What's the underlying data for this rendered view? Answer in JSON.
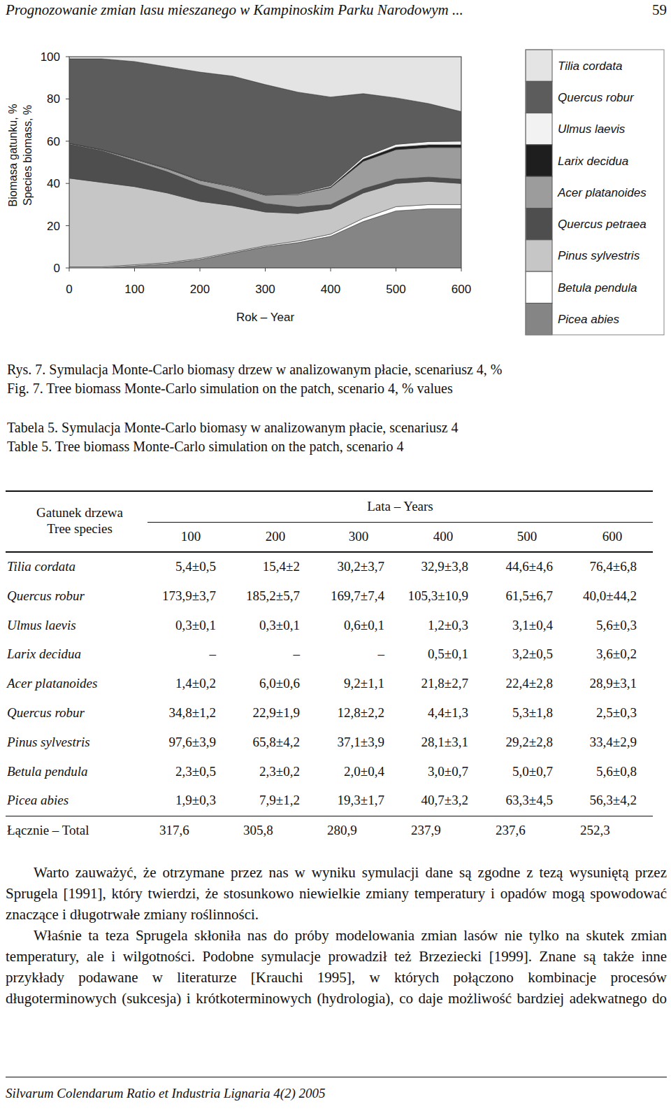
{
  "header": {
    "title": "Prognozowanie zmian lasu mieszanego w Kampinoskim Parku Narodowym ...",
    "page": "59"
  },
  "chart_data": {
    "type": "area",
    "stacked": true,
    "y_label": [
      "Biomasa gatunku, %",
      "Species biomass, %"
    ],
    "x_label": "Rok – Year",
    "x": [
      0,
      50,
      100,
      150,
      200,
      250,
      300,
      350,
      400,
      450,
      500,
      550,
      600
    ],
    "xlim": [
      0,
      600
    ],
    "xticks": [
      0,
      100,
      200,
      300,
      400,
      500,
      600
    ],
    "ylim": [
      0,
      100
    ],
    "yticks": [
      0,
      20,
      40,
      60,
      80,
      100
    ],
    "grid": false,
    "legend": "right",
    "series": [
      {
        "name": "Tilia cordata",
        "color": "#e4e4e4",
        "values": [
          1,
          1,
          2.3,
          4.8,
          7.3,
          9.2,
          13.2,
          16.8,
          19.1,
          17.5,
          19.5,
          22.2,
          26
        ]
      },
      {
        "name": "Quercus robur",
        "color": "#5c5c5c",
        "values": [
          40,
          43,
          46,
          48,
          51,
          52,
          52,
          48,
          42,
          30,
          22,
          18,
          14
        ]
      },
      {
        "name": "Ulmus laevis",
        "color": "#f2f2f2",
        "values": [
          0,
          0,
          0.2,
          0.2,
          0.2,
          0.3,
          0.3,
          0.4,
          0.6,
          1,
          1.3,
          1.5,
          1.7
        ]
      },
      {
        "name": "Larix decidua",
        "color": "#1e1e1e",
        "values": [
          0,
          0,
          0,
          0,
          0,
          0,
          0,
          0,
          0.3,
          1,
          1.2,
          1.3,
          1.3
        ]
      },
      {
        "name": "Acer platanoides",
        "color": "#9c9c9c",
        "values": [
          0.5,
          0.5,
          1,
          1.5,
          2,
          3,
          4,
          6,
          8,
          13,
          14,
          14,
          15
        ]
      },
      {
        "name": "Quercus petraea",
        "color": "#4e4e4e",
        "values": [
          16,
          15,
          12,
          10,
          8,
          6,
          4,
          3,
          2,
          2,
          2,
          2,
          2
        ]
      },
      {
        "name": "Pinus sylvestris",
        "color": "#c6c6c6",
        "values": [
          42,
          40,
          37,
          33,
          27,
          22,
          16,
          13,
          12,
          12,
          11,
          11,
          10
        ]
      },
      {
        "name": "Betula pendula",
        "color": "#ffffff",
        "values": [
          0.5,
          0.5,
          0.5,
          0.5,
          0.5,
          0.5,
          0.5,
          0.8,
          1,
          1.5,
          2,
          2,
          2
        ]
      },
      {
        "name": "Picea abies",
        "color": "#858585",
        "values": [
          0,
          0,
          1,
          2,
          4,
          7,
          10,
          12,
          15,
          22,
          27,
          28,
          28
        ]
      }
    ]
  },
  "figure_caption": [
    "Rys. 7. Symulacja Monte-Carlo biomasy drzew w analizowanym płacie, scenariusz 4, %",
    "Fig. 7. Tree biomass Monte-Carlo simulation on the patch, scenario 4, % values"
  ],
  "table": {
    "caption": [
      "Tabela 5. Symulacja Monte-Carlo biomasy w analizowanym płacie, scenariusz 4",
      "Table 5. Tree biomass Monte-Carlo simulation on the patch, scenario 4"
    ],
    "header": {
      "species": [
        "Gatunek drzewa",
        "Tree species"
      ],
      "years_label": "Lata – Years",
      "years": [
        "100",
        "200",
        "300",
        "400",
        "500",
        "600"
      ]
    },
    "rows": [
      [
        "Tilia cordata",
        "5,4±0,5",
        "15,4±2",
        "30,2±3,7",
        "32,9±3,8",
        "44,6±4,6",
        "76,4±6,8"
      ],
      [
        "Quercus robur",
        "173,9±3,7",
        "185,2±5,7",
        "169,7±7,4",
        "105,3±10,9",
        "61,5±6,7",
        "40,0±44,2"
      ],
      [
        "Ulmus laevis",
        "0,3±0,1",
        "0,3±0,1",
        "0,6±0,1",
        "1,2±0,3",
        "3,1±0,4",
        "5,6±0,3"
      ],
      [
        "Larix decidua",
        "–",
        "–",
        "–",
        "0,5±0,1",
        "3,2±0,5",
        "3,6±0,2"
      ],
      [
        "Acer platanoides",
        "1,4±0,2",
        "6,0±0,6",
        "9,2±1,1",
        "21,8±2,7",
        "22,4±2,8",
        "28,9±3,1"
      ],
      [
        "Quercus robur",
        "34,8±1,2",
        "22,9±1,9",
        "12,8±2,2",
        "4,4±1,3",
        "5,3±1,8",
        "2,5±0,3"
      ],
      [
        "Pinus sylvestris",
        "97,6±3,9",
        "65,8±4,2",
        "37,1±3,9",
        "28,1±3,1",
        "29,2±2,8",
        "33,4±2,9"
      ],
      [
        "Betula pendula",
        "2,3±0,5",
        "2,3±0,2",
        "2,0±0,4",
        "3,0±0,7",
        "5,0±0,7",
        "5,6±0,8"
      ],
      [
        "Picea abies",
        "1,9±0,3",
        "7,9±1,2",
        "19,3±1,7",
        "40,7±3,2",
        "63,3±4,5",
        "56,3±4,2"
      ]
    ],
    "total": [
      "Łącznie – Total",
      "317,6",
      "305,8",
      "280,9",
      "237,9",
      "237,6",
      "252,3"
    ]
  },
  "paragraphs": [
    "Warto zauważyć, że otrzymane przez nas w wyniku symulacji dane są zgodne z tezą wysuniętą przez Sprugela [1991], który twierdzi, że stosunkowo niewielkie zmiany temperatury i opadów mogą spowodować znaczące i długotrwałe zmiany roślinności.",
    "Właśnie ta teza Sprugela skłoniła nas do próby modelowania zmian lasów nie tylko na skutek zmian temperatury, ale i wilgotności. Podobne symulacje prowadził też Brzeziecki [1999]. Znane są także inne przykłady podawane w literaturze [Krauchi 1995], w których połączono kombinacje procesów długoterminowych (sukcesja) i krótkoterminowych (hydrologia), co daje możliwość bardziej adekwatnego do"
  ],
  "footer": "Silvarum Colendarum Ratio et Industria Lignaria 4(2) 2005"
}
